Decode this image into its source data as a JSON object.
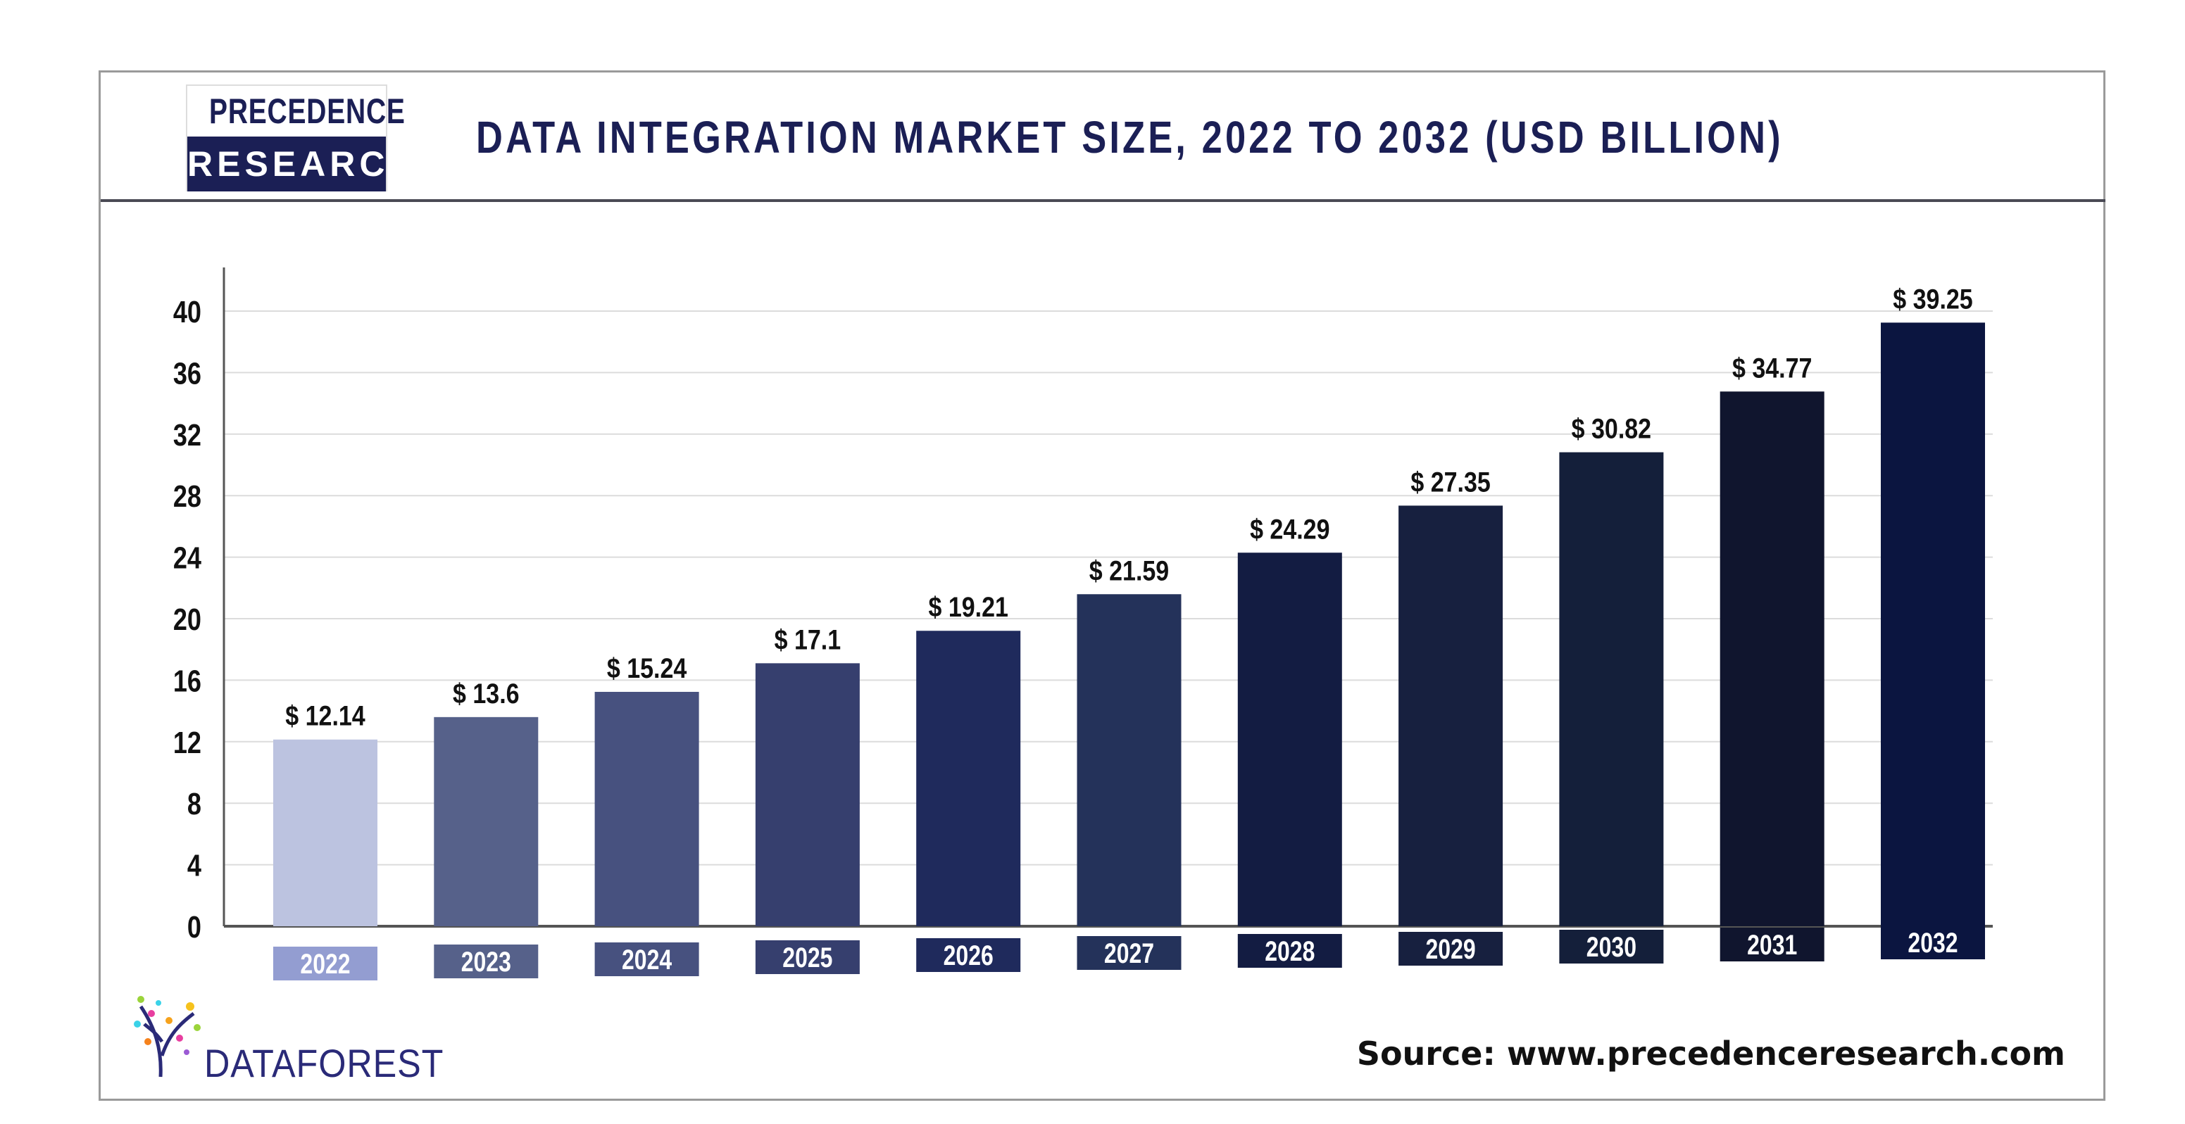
{
  "header": {
    "logo_top": "PRECEDENCE",
    "logo_bottom": "RESEARCH",
    "title": "DATA INTEGRATION MARKET SIZE, 2022 TO 2032 (USD BILLION)"
  },
  "footer": {
    "partner_logo": "DATAFOREST",
    "source": "Source: www.precedenceresearch.com"
  },
  "chart_data": {
    "type": "bar",
    "title": "DATA INTEGRATION MARKET SIZE, 2022 TO 2032 (USD BILLION)",
    "categories": [
      "2022",
      "2023",
      "2024",
      "2025",
      "2026",
      "2027",
      "2028",
      "2029",
      "2030",
      "2031",
      "2032"
    ],
    "values": [
      12.14,
      13.6,
      15.24,
      17.1,
      19.21,
      21.59,
      24.29,
      27.35,
      30.82,
      34.77,
      39.25
    ],
    "data_labels": [
      "$ 12.14",
      "$ 13.6",
      "$ 15.24",
      "$ 17.1",
      "$ 19.21",
      "$ 21.59",
      "$ 24.29",
      "$ 27.35",
      "$ 30.82",
      "$ 34.77",
      "$ 39.25"
    ],
    "yticks": [
      0,
      4,
      8,
      12,
      16,
      20,
      24,
      28,
      32,
      36,
      40
    ],
    "ylim": [
      0,
      40
    ],
    "grid": true,
    "xlabel": "",
    "ylabel": "",
    "bar_colors": [
      "#bcc3e0",
      "#56618a",
      "#47517f",
      "#363f6e",
      "#1f2a5c",
      "#24325a",
      "#131c42",
      "#17203f",
      "#141f3a",
      "#10152e",
      "#0b1540"
    ],
    "label_box_colors": [
      "#939dd1",
      "#56618a",
      "#47517f",
      "#363f6e",
      "#1f2a5c",
      "#24325a",
      "#131c42",
      "#17203f",
      "#141f3a",
      "#10152e",
      "#0b1540"
    ]
  }
}
